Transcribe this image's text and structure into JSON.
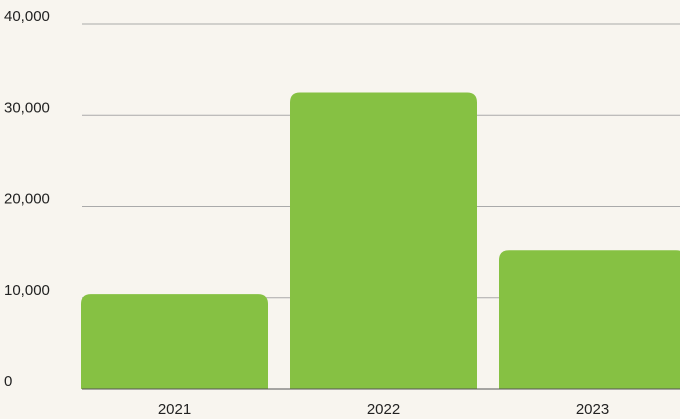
{
  "chart_data": {
    "type": "bar",
    "categories": [
      "2021",
      "2022",
      "2023"
    ],
    "values": [
      10400,
      32500,
      15200
    ],
    "color": "#86c143",
    "ylim": [
      0,
      40000
    ],
    "yticks": [
      0,
      {
        "value": 10000,
        "label": "10,000"
      },
      {
        "value": 20000,
        "label": "20,000"
      },
      {
        "value": 30000,
        "label": "30,000"
      },
      {
        "value": 40000,
        "label": "40,000"
      }
    ],
    "grid": true
  }
}
